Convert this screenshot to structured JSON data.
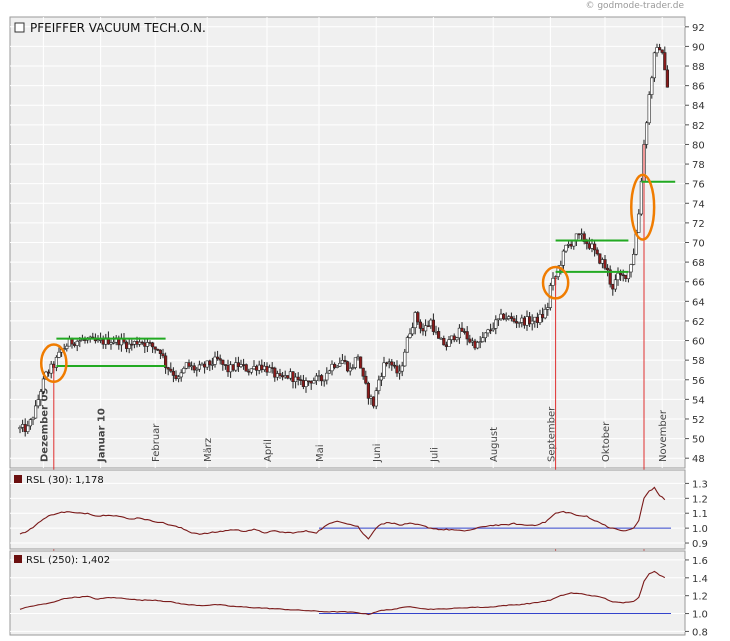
{
  "watermark": "© godmode-trader.de",
  "chart_data": [
    {
      "type": "candlestick",
      "title": "PFEIFFER VACUUM TECH.O.N.",
      "ylim": [
        47,
        93
      ],
      "y_ticks": [
        48,
        50,
        52,
        54,
        56,
        58,
        60,
        62,
        64,
        66,
        68,
        70,
        72,
        74,
        76,
        78,
        80,
        82,
        84,
        86,
        88,
        90,
        92
      ],
      "x_month_labels": [
        {
          "label": "Dezember 09",
          "day": 9,
          "bold": true
        },
        {
          "label": "Januar 10",
          "day": 31,
          "bold": true
        },
        {
          "label": "Februar",
          "day": 52,
          "bold": false
        },
        {
          "label": "März",
          "day": 72,
          "bold": false
        },
        {
          "label": "April",
          "day": 95,
          "bold": false
        },
        {
          "label": "Mai",
          "day": 115,
          "bold": false
        },
        {
          "label": "Juni",
          "day": 137,
          "bold": false
        },
        {
          "label": "Juli",
          "day": 159,
          "bold": false
        },
        {
          "label": "August",
          "day": 182,
          "bold": false
        },
        {
          "label": "September",
          "day": 204,
          "bold": false
        },
        {
          "label": "Oktober",
          "day": 225,
          "bold": false
        },
        {
          "label": "November",
          "day": 247,
          "bold": false
        }
      ],
      "close_path": [
        [
          0,
          51
        ],
        [
          3,
          51
        ],
        [
          6,
          53
        ],
        [
          8,
          55
        ],
        [
          10,
          56.5
        ],
        [
          13,
          57.5
        ],
        [
          16,
          59
        ],
        [
          19,
          59.8
        ],
        [
          22,
          60
        ],
        [
          26,
          60
        ],
        [
          30,
          59.8
        ],
        [
          34,
          60
        ],
        [
          38,
          60
        ],
        [
          42,
          59.5
        ],
        [
          46,
          60
        ],
        [
          50,
          59.5
        ],
        [
          54,
          59
        ],
        [
          56,
          57.5
        ],
        [
          58,
          57
        ],
        [
          61,
          56
        ],
        [
          64,
          57.5
        ],
        [
          68,
          57
        ],
        [
          72,
          57.5
        ],
        [
          76,
          58
        ],
        [
          80,
          57
        ],
        [
          84,
          57.5
        ],
        [
          88,
          57
        ],
        [
          92,
          57.5
        ],
        [
          96,
          57
        ],
        [
          100,
          56
        ],
        [
          104,
          56.5
        ],
        [
          108,
          55.5
        ],
        [
          112,
          56
        ],
        [
          116,
          56
        ],
        [
          120,
          57.5
        ],
        [
          124,
          58
        ],
        [
          127,
          57
        ],
        [
          130,
          58.5
        ],
        [
          132,
          56
        ],
        [
          134,
          54.5
        ],
        [
          136,
          53.5
        ],
        [
          138,
          56
        ],
        [
          140,
          57.5
        ],
        [
          142,
          58
        ],
        [
          144,
          57
        ],
        [
          146,
          56.5
        ],
        [
          148,
          59
        ],
        [
          150,
          61
        ],
        [
          152,
          62.5
        ],
        [
          155,
          61
        ],
        [
          158,
          62
        ],
        [
          161,
          60
        ],
        [
          164,
          59.5
        ],
        [
          167,
          60.5
        ],
        [
          170,
          61
        ],
        [
          173,
          60
        ],
        [
          176,
          59.5
        ],
        [
          179,
          60.5
        ],
        [
          182,
          61.5
        ],
        [
          186,
          62.5
        ],
        [
          190,
          62
        ],
        [
          194,
          62
        ],
        [
          198,
          62
        ],
        [
          201,
          62.5
        ],
        [
          203,
          63.5
        ],
        [
          204,
          65.5
        ],
        [
          206,
          66.5
        ],
        [
          208,
          68
        ],
        [
          210,
          69.5
        ],
        [
          212,
          70
        ],
        [
          214,
          70.5
        ],
        [
          216,
          70.5
        ],
        [
          218,
          70
        ],
        [
          220,
          69.5
        ],
        [
          222,
          68.5
        ],
        [
          224,
          68
        ],
        [
          226,
          67
        ],
        [
          227,
          66
        ],
        [
          228,
          65.5
        ],
        [
          230,
          66.5
        ],
        [
          232,
          66.5
        ],
        [
          234,
          67
        ],
        [
          236,
          69
        ],
        [
          238,
          73
        ],
        [
          240,
          80
        ],
        [
          242,
          85
        ],
        [
          244,
          89
        ],
        [
          246,
          90
        ],
        [
          248,
          88
        ],
        [
          249,
          86
        ]
      ],
      "annotations": {
        "green_lines": [
          {
            "from_day": 14,
            "to_day": 56,
            "value": 60.2
          },
          {
            "from_day": 14,
            "to_day": 56,
            "value": 57.4
          },
          {
            "from_day": 206,
            "to_day": 234,
            "value": 70.2
          },
          {
            "from_day": 206,
            "to_day": 234,
            "value": 67
          },
          {
            "from_day": 239,
            "to_day": 252,
            "value": 76.2
          }
        ],
        "orange_ellipses": [
          {
            "day": 13,
            "value": 57.7,
            "rx_days": 2.2,
            "ry_value": 1.9
          },
          {
            "day": 206,
            "value": 65.9,
            "rx_days": 2.2,
            "ry_value": 1.6
          },
          {
            "day": 239.5,
            "value": 73.6,
            "rx_days": 2,
            "ry_value": 3.3
          }
        ],
        "red_vertical_lines_days": [
          13,
          206,
          240
        ]
      }
    },
    {
      "type": "line",
      "title": "RSL (30): 1,178",
      "ylim": [
        0.86,
        1.39
      ],
      "y_ticks": [
        0.9,
        1.0,
        1.1,
        1.2,
        1.3
      ],
      "baseline": 1.0,
      "baseline_from_day": 115,
      "values_path": [
        [
          0,
          0.96
        ],
        [
          3,
          0.98
        ],
        [
          6,
          1.02
        ],
        [
          8,
          1.05
        ],
        [
          11,
          1.08
        ],
        [
          14,
          1.1
        ],
        [
          18,
          1.11
        ],
        [
          22,
          1.1
        ],
        [
          26,
          1.1
        ],
        [
          30,
          1.08
        ],
        [
          34,
          1.09
        ],
        [
          38,
          1.08
        ],
        [
          42,
          1.06
        ],
        [
          46,
          1.07
        ],
        [
          50,
          1.05
        ],
        [
          54,
          1.04
        ],
        [
          58,
          1.02
        ],
        [
          62,
          1.0
        ],
        [
          66,
          0.97
        ],
        [
          70,
          0.96
        ],
        [
          74,
          0.97
        ],
        [
          78,
          0.98
        ],
        [
          82,
          0.99
        ],
        [
          86,
          0.98
        ],
        [
          90,
          0.99
        ],
        [
          94,
          0.97
        ],
        [
          98,
          0.98
        ],
        [
          102,
          0.97
        ],
        [
          106,
          0.97
        ],
        [
          110,
          0.98
        ],
        [
          114,
          0.97
        ],
        [
          118,
          1.02
        ],
        [
          122,
          1.05
        ],
        [
          126,
          1.03
        ],
        [
          130,
          1.01
        ],
        [
          132,
          0.96
        ],
        [
          134,
          0.93
        ],
        [
          136,
          0.98
        ],
        [
          138,
          1.02
        ],
        [
          142,
          1.04
        ],
        [
          146,
          1.02
        ],
        [
          150,
          1.03
        ],
        [
          154,
          1.02
        ],
        [
          158,
          1.0
        ],
        [
          162,
          0.99
        ],
        [
          166,
          0.99
        ],
        [
          170,
          0.98
        ],
        [
          174,
          0.99
        ],
        [
          178,
          1.01
        ],
        [
          182,
          1.02
        ],
        [
          186,
          1.02
        ],
        [
          190,
          1.03
        ],
        [
          194,
          1.02
        ],
        [
          198,
          1.02
        ],
        [
          202,
          1.04
        ],
        [
          206,
          1.1
        ],
        [
          209,
          1.11
        ],
        [
          212,
          1.1
        ],
        [
          215,
          1.08
        ],
        [
          218,
          1.08
        ],
        [
          221,
          1.05
        ],
        [
          224,
          1.03
        ],
        [
          227,
          1.0
        ],
        [
          230,
          0.99
        ],
        [
          233,
          0.98
        ],
        [
          236,
          1.0
        ],
        [
          238,
          1.05
        ],
        [
          240,
          1.2
        ],
        [
          242,
          1.25
        ],
        [
          244,
          1.27
        ],
        [
          246,
          1.22
        ],
        [
          248,
          1.19
        ]
      ]
    },
    {
      "type": "line",
      "title": "RSL (250): 1,402",
      "ylim": [
        0.76,
        1.7
      ],
      "y_ticks": [
        0.8,
        1.0,
        1.2,
        1.4,
        1.6
      ],
      "baseline": 1.0,
      "baseline_from_day": 115,
      "values_path": [
        [
          0,
          1.05
        ],
        [
          4,
          1.08
        ],
        [
          8,
          1.1
        ],
        [
          12,
          1.12
        ],
        [
          16,
          1.16
        ],
        [
          20,
          1.18
        ],
        [
          26,
          1.19
        ],
        [
          30,
          1.16
        ],
        [
          34,
          1.18
        ],
        [
          40,
          1.17
        ],
        [
          46,
          1.15
        ],
        [
          52,
          1.15
        ],
        [
          58,
          1.13
        ],
        [
          64,
          1.1
        ],
        [
          70,
          1.09
        ],
        [
          76,
          1.1
        ],
        [
          82,
          1.08
        ],
        [
          88,
          1.07
        ],
        [
          94,
          1.06
        ],
        [
          100,
          1.05
        ],
        [
          106,
          1.04
        ],
        [
          112,
          1.03
        ],
        [
          118,
          1.02
        ],
        [
          124,
          1.02
        ],
        [
          130,
          1.01
        ],
        [
          134,
          0.99
        ],
        [
          138,
          1.03
        ],
        [
          144,
          1.05
        ],
        [
          150,
          1.08
        ],
        [
          156,
          1.05
        ],
        [
          162,
          1.05
        ],
        [
          168,
          1.06
        ],
        [
          174,
          1.07
        ],
        [
          180,
          1.07
        ],
        [
          186,
          1.09
        ],
        [
          192,
          1.1
        ],
        [
          198,
          1.12
        ],
        [
          204,
          1.15
        ],
        [
          208,
          1.2
        ],
        [
          212,
          1.23
        ],
        [
          216,
          1.22
        ],
        [
          220,
          1.2
        ],
        [
          224,
          1.18
        ],
        [
          228,
          1.13
        ],
        [
          232,
          1.12
        ],
        [
          236,
          1.14
        ],
        [
          238,
          1.18
        ],
        [
          240,
          1.36
        ],
        [
          242,
          1.45
        ],
        [
          244,
          1.47
        ],
        [
          246,
          1.43
        ],
        [
          248,
          1.4
        ]
      ]
    }
  ]
}
